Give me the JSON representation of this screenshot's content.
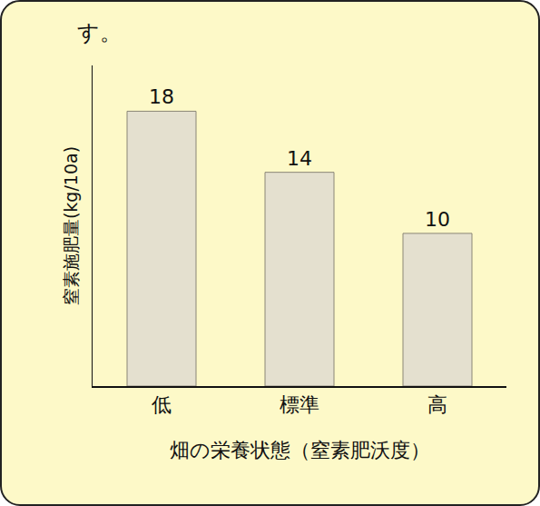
{
  "chart_data": {
    "type": "bar",
    "title": "す。",
    "categories": [
      "低",
      "標準",
      "高"
    ],
    "values": [
      18,
      14,
      10
    ],
    "color": "#e4e0cf",
    "x_label": "畑の栄養状態（窒素肥沃度）",
    "y_label": "窒素施肥量(kg/10a)",
    "ylim": [
      0,
      21
    ],
    "grid": false,
    "data_labels": true,
    "tick_labels": "x"
  }
}
